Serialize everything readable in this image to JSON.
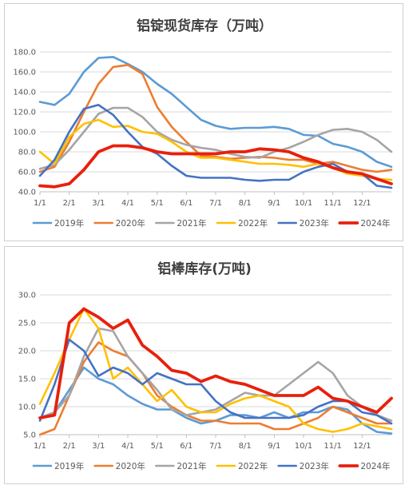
{
  "chart_data": [
    {
      "type": "line",
      "title": "铝锭现货库存（万吨）",
      "xlabel": "",
      "ylabel": "",
      "ylim": [
        40,
        180
      ],
      "yticks": [
        "40.0",
        "60.0",
        "80.0",
        "100.0",
        "120.0",
        "140.0",
        "160.0",
        "180.0"
      ],
      "xticks": [
        "1/1",
        "2/1",
        "3/1",
        "4/1",
        "5/1",
        "6/1",
        "7/1",
        "8/1",
        "9/1",
        "10/1",
        "11/1",
        "12/1"
      ],
      "x_months": [
        0,
        0.5,
        1,
        1.5,
        2,
        2.5,
        3,
        3.5,
        4,
        4.5,
        5,
        5.5,
        6,
        6.5,
        7,
        7.5,
        8,
        8.5,
        9,
        9.5,
        10,
        10.5,
        11,
        11.5,
        12
      ],
      "grid": true,
      "legend": "bottom",
      "series": [
        {
          "name": "2019年",
          "color": "#5B9BD5",
          "values": [
            130,
            127,
            138,
            160,
            174,
            175,
            168,
            160,
            148,
            138,
            125,
            112,
            106,
            103,
            104,
            104,
            105,
            103,
            97,
            96,
            88,
            85,
            80,
            70,
            65
          ]
        },
        {
          "name": "2020年",
          "color": "#ED7D31",
          "values": [
            60,
            65,
            90,
            120,
            148,
            165,
            167,
            158,
            125,
            105,
            90,
            76,
            75,
            73,
            74,
            75,
            74,
            72,
            72,
            68,
            70,
            66,
            62,
            60,
            62
          ]
        },
        {
          "name": "2021年",
          "color": "#A5A5A5",
          "values": [
            63,
            67,
            82,
            100,
            118,
            124,
            124,
            115,
            100,
            92,
            87,
            84,
            82,
            78,
            75,
            74,
            80,
            84,
            90,
            97,
            102,
            103,
            100,
            92,
            80
          ]
        },
        {
          "name": "2022年",
          "color": "#FFC000",
          "values": [
            80,
            68,
            95,
            108,
            112,
            105,
            106,
            100,
            98,
            90,
            80,
            74,
            74,
            72,
            70,
            68,
            68,
            67,
            65,
            68,
            64,
            58,
            56,
            53,
            52
          ]
        },
        {
          "name": "2023年",
          "color": "#4472C4",
          "values": [
            56,
            72,
            100,
            123,
            127,
            117,
            100,
            85,
            78,
            66,
            56,
            54,
            54,
            54,
            52,
            51,
            52,
            52,
            60,
            65,
            68,
            60,
            58,
            46,
            44
          ]
        },
        {
          "name": "2024年",
          "color": "#E8200C",
          "values": [
            46,
            45,
            48,
            62,
            80,
            86,
            86,
            84,
            80,
            78,
            78,
            78,
            78,
            80,
            80,
            83,
            82,
            80,
            74,
            70,
            64,
            60,
            58,
            53,
            48
          ]
        }
      ]
    },
    {
      "type": "line",
      "title": "铝棒库存(万吨)",
      "xlabel": "",
      "ylabel": "",
      "ylim": [
        5,
        30
      ],
      "yticks": [
        "5.0",
        "10.0",
        "15.0",
        "20.0",
        "25.0",
        "30.0"
      ],
      "xticks": [
        "1/1",
        "2/1",
        "3/1",
        "4/1",
        "5/1",
        "6/1",
        "7/1",
        "8/1",
        "9/1",
        "10/1",
        "11/1",
        "12/1"
      ],
      "x_months": [
        0,
        0.5,
        1,
        1.5,
        2,
        2.5,
        3,
        3.5,
        4,
        4.5,
        5,
        5.5,
        6,
        6.5,
        7,
        7.5,
        8,
        8.5,
        9,
        9.5,
        10,
        10.5,
        11,
        11.5,
        12
      ],
      "grid": true,
      "legend": "bottom",
      "series": [
        {
          "name": "2019年",
          "color": "#5B9BD5",
          "values": [
            8,
            9,
            13,
            17,
            15,
            14,
            12,
            10.5,
            9.5,
            9.5,
            8,
            7,
            7.5,
            8.5,
            8.5,
            8,
            9,
            8,
            9,
            9,
            10,
            9.5,
            7,
            5.5,
            5.2
          ]
        },
        {
          "name": "2020年",
          "color": "#ED7D31",
          "values": [
            5,
            6,
            12,
            18,
            21.5,
            20,
            19,
            16,
            12,
            10,
            8.5,
            7.5,
            7.5,
            7,
            7,
            7,
            6,
            6,
            7,
            8,
            10,
            9,
            8,
            7,
            7
          ]
        },
        {
          "name": "2021年",
          "color": "#A5A5A5",
          "values": [
            8,
            9,
            12,
            19,
            24,
            23.5,
            19,
            16,
            13,
            9.5,
            8.5,
            9,
            9.5,
            11,
            12.5,
            12,
            12,
            14,
            16,
            18,
            16,
            12,
            10,
            8.5,
            7.5
          ]
        },
        {
          "name": "2022年",
          "color": "#FFC000",
          "values": [
            10.5,
            16,
            22,
            27.5,
            24,
            15,
            17,
            14,
            11,
            13,
            10,
            9,
            9,
            10.5,
            11.5,
            12,
            11,
            10,
            7,
            6,
            5.5,
            6,
            7,
            6.5,
            6
          ]
        },
        {
          "name": "2023年",
          "color": "#4472C4",
          "values": [
            7.5,
            14,
            22,
            20,
            15.5,
            17,
            16,
            14,
            16,
            15,
            14,
            14,
            11,
            9,
            8,
            8,
            8,
            8,
            8.5,
            10,
            11,
            11,
            9,
            8.5,
            7
          ]
        },
        {
          "name": "2024年",
          "color": "#E8200C",
          "values": [
            8,
            8.5,
            25,
            27.5,
            26,
            24,
            25.5,
            21,
            19,
            16.5,
            16,
            14.5,
            15.5,
            14.5,
            14,
            13,
            12,
            12,
            12,
            13.5,
            11.5,
            11,
            10,
            9,
            11.5
          ]
        }
      ]
    }
  ]
}
